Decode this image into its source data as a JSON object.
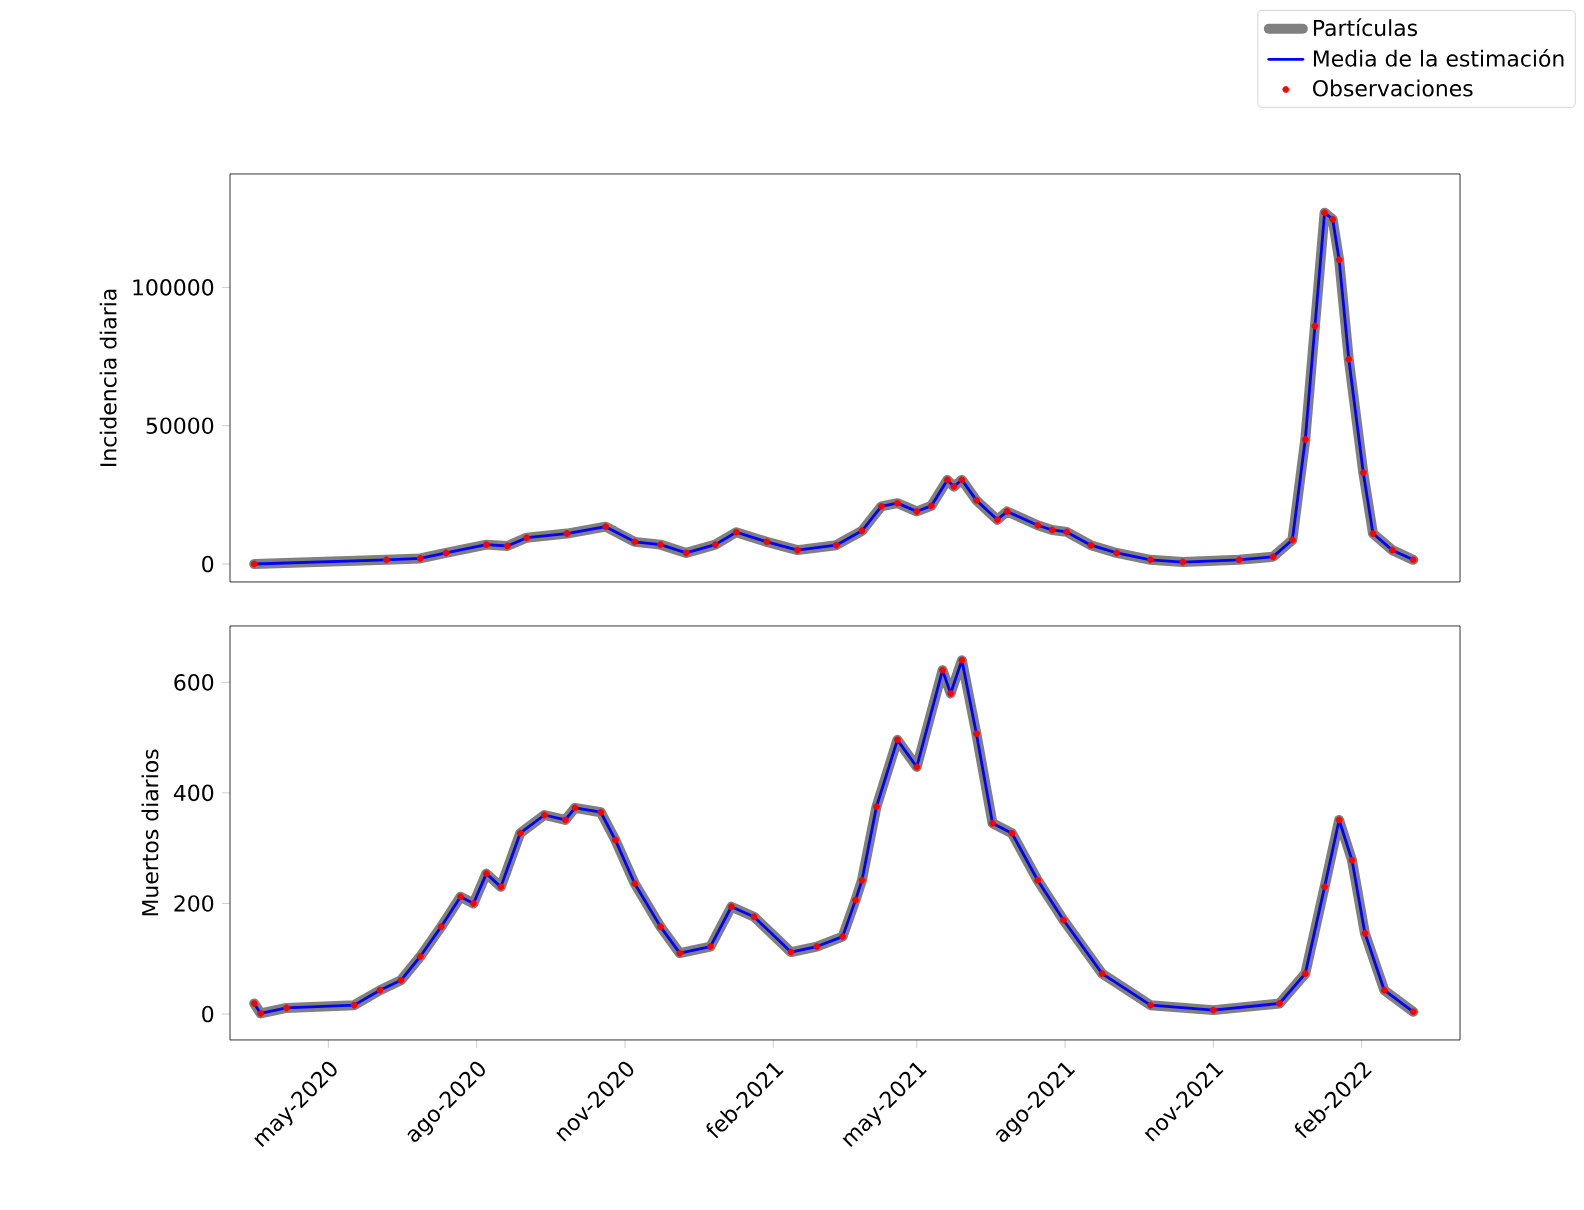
{
  "chart_data": [
    {
      "type": "line",
      "ylabel": "Incidencia diaria",
      "xlim": [
        "2020-03-01",
        "2022-04-03"
      ],
      "ylim": [
        -6500,
        141000
      ],
      "yticks": [
        0,
        50000,
        100000
      ],
      "tick_labels": "y",
      "legend": "top right",
      "x": [
        "2020-03-16",
        "2020-06-06",
        "2020-06-27",
        "2020-07-13",
        "2020-08-07",
        "2020-08-20",
        "2020-09-01",
        "2020-09-26",
        "2020-10-20",
        "2020-11-07",
        "2020-11-23",
        "2020-12-09",
        "2020-12-27",
        "2021-01-09",
        "2021-01-28",
        "2021-02-16",
        "2021-03-12",
        "2021-03-28",
        "2021-04-09",
        "2021-04-19",
        "2021-05-01",
        "2021-05-10",
        "2021-05-20",
        "2021-05-24",
        "2021-05-29",
        "2021-06-07",
        "2021-06-20",
        "2021-06-26",
        "2021-07-15",
        "2021-07-24",
        "2021-08-02",
        "2021-08-17",
        "2021-09-02",
        "2021-09-23",
        "2021-10-13",
        "2021-11-17",
        "2021-12-08",
        "2021-12-20",
        "2021-12-28",
        "2022-01-03",
        "2022-01-09",
        "2022-01-14",
        "2022-01-18",
        "2022-01-24",
        "2022-02-02",
        "2022-02-08",
        "2022-02-20",
        "2022-03-05"
      ],
      "series": [
        {
          "name": "Partículas",
          "color": "#808080",
          "values": [
            0,
            1500,
            2000,
            4000,
            7000,
            6500,
            9500,
            11000,
            13500,
            8000,
            7000,
            4000,
            7000,
            11500,
            8000,
            5000,
            6800,
            12000,
            20800,
            22000,
            19000,
            21000,
            30400,
            28000,
            30400,
            23000,
            16000,
            19000,
            14000,
            12300,
            11600,
            6800,
            4000,
            1500,
            700,
            1500,
            2600,
            8700,
            45000,
            86000,
            127000,
            124600,
            110000,
            74000,
            33000,
            11000,
            5000,
            1500
          ]
        },
        {
          "name": "Media de la estimación",
          "color": "#0000ff",
          "values": [
            0,
            1500,
            2000,
            4000,
            7000,
            6500,
            9500,
            11000,
            13500,
            8000,
            7000,
            4000,
            7000,
            11500,
            8000,
            5000,
            6800,
            12000,
            20800,
            22000,
            19000,
            21000,
            30400,
            28000,
            30400,
            23000,
            16000,
            19000,
            14000,
            12300,
            11600,
            6800,
            4000,
            1500,
            700,
            1500,
            2600,
            8700,
            45000,
            86000,
            127000,
            124600,
            110000,
            74000,
            33000,
            11000,
            5000,
            1500
          ]
        },
        {
          "name": "Observaciones",
          "type": "scatter",
          "marker": "circle",
          "color": "#ff0000",
          "values": [
            0,
            1500,
            2000,
            4000,
            7000,
            6500,
            9500,
            11000,
            13500,
            8000,
            7000,
            4000,
            7000,
            11500,
            8000,
            5000,
            6800,
            12000,
            20800,
            22000,
            19000,
            21000,
            30400,
            28000,
            30400,
            23000,
            16000,
            19000,
            14000,
            12300,
            11600,
            6800,
            4000,
            1500,
            700,
            1500,
            2600,
            8700,
            45000,
            86000,
            127000,
            124600,
            110000,
            74000,
            33000,
            11000,
            5000,
            1500
          ]
        }
      ]
    },
    {
      "type": "line",
      "ylabel": "Muertos diarios",
      "xlim": [
        "2020-03-01",
        "2022-04-03"
      ],
      "ylim": [
        -47,
        702
      ],
      "yticks": [
        0,
        200,
        400,
        600
      ],
      "xticks": [
        {
          "value": "2020-05-01",
          "label": "may-2020"
        },
        {
          "value": "2020-08-01",
          "label": "ago-2020"
        },
        {
          "value": "2020-11-01",
          "label": "nov-2020"
        },
        {
          "value": "2021-02-01",
          "label": "feb-2021"
        },
        {
          "value": "2021-05-01",
          "label": "may-2021"
        },
        {
          "value": "2021-08-01",
          "label": "ago-2021"
        },
        {
          "value": "2021-11-01",
          "label": "nov-2021"
        },
        {
          "value": "2022-02-01",
          "label": "feb-2022"
        }
      ],
      "x": [
        "2020-03-16",
        "2020-03-20",
        "2020-04-05",
        "2020-05-17",
        "2020-06-02",
        "2020-06-15",
        "2020-06-27",
        "2020-07-10",
        "2020-07-22",
        "2020-07-30",
        "2020-08-07",
        "2020-08-16",
        "2020-08-28",
        "2020-09-12",
        "2020-09-25",
        "2020-10-01",
        "2020-10-17",
        "2020-10-26",
        "2020-11-07",
        "2020-11-23",
        "2020-12-05",
        "2020-12-24",
        "2021-01-06",
        "2021-01-20",
        "2021-02-12",
        "2021-02-28",
        "2021-03-16",
        "2021-03-24",
        "2021-03-28",
        "2021-04-06",
        "2021-04-19",
        "2021-05-01",
        "2021-05-17",
        "2021-05-22",
        "2021-05-29",
        "2021-06-07",
        "2021-06-17",
        "2021-06-29",
        "2021-07-15",
        "2021-07-31",
        "2021-08-24",
        "2021-09-23",
        "2021-11-01",
        "2021-12-12",
        "2021-12-28",
        "2022-01-09",
        "2022-01-18",
        "2022-01-26",
        "2022-02-03",
        "2022-02-15",
        "2022-03-05"
      ],
      "series": [
        {
          "color": "#808080",
          "values": [
            19,
            1,
            11,
            16,
            43,
            61,
            104,
            158,
            212,
            200,
            254,
            230,
            327,
            360,
            351,
            373,
            365,
            315,
            236,
            158,
            110,
            122,
            194,
            176,
            112,
            122,
            140,
            206,
            242,
            375,
            496,
            447,
            622,
            580,
            640,
            507,
            345,
            327,
            242,
            170,
            73,
            16,
            7,
            19,
            73,
            230,
            351,
            278,
            146,
            43,
            4
          ]
        },
        {
          "color": "#0000ff",
          "values": [
            19,
            1,
            11,
            16,
            43,
            61,
            104,
            158,
            212,
            200,
            254,
            230,
            327,
            360,
            351,
            373,
            365,
            315,
            236,
            158,
            110,
            122,
            194,
            176,
            112,
            122,
            140,
            206,
            242,
            375,
            496,
            447,
            622,
            580,
            640,
            507,
            345,
            327,
            242,
            170,
            73,
            16,
            7,
            19,
            73,
            230,
            351,
            278,
            146,
            43,
            4
          ]
        },
        {
          "type": "scatter",
          "marker": "circle",
          "color": "#ff0000",
          "values": [
            19,
            1,
            11,
            16,
            43,
            61,
            104,
            158,
            212,
            200,
            254,
            230,
            327,
            360,
            351,
            373,
            365,
            315,
            236,
            158,
            110,
            122,
            194,
            176,
            112,
            122,
            140,
            206,
            242,
            375,
            496,
            447,
            622,
            580,
            640,
            507,
            345,
            327,
            242,
            170,
            73,
            16,
            7,
            19,
            73,
            230,
            351,
            278,
            146,
            43,
            4
          ]
        }
      ]
    }
  ]
}
